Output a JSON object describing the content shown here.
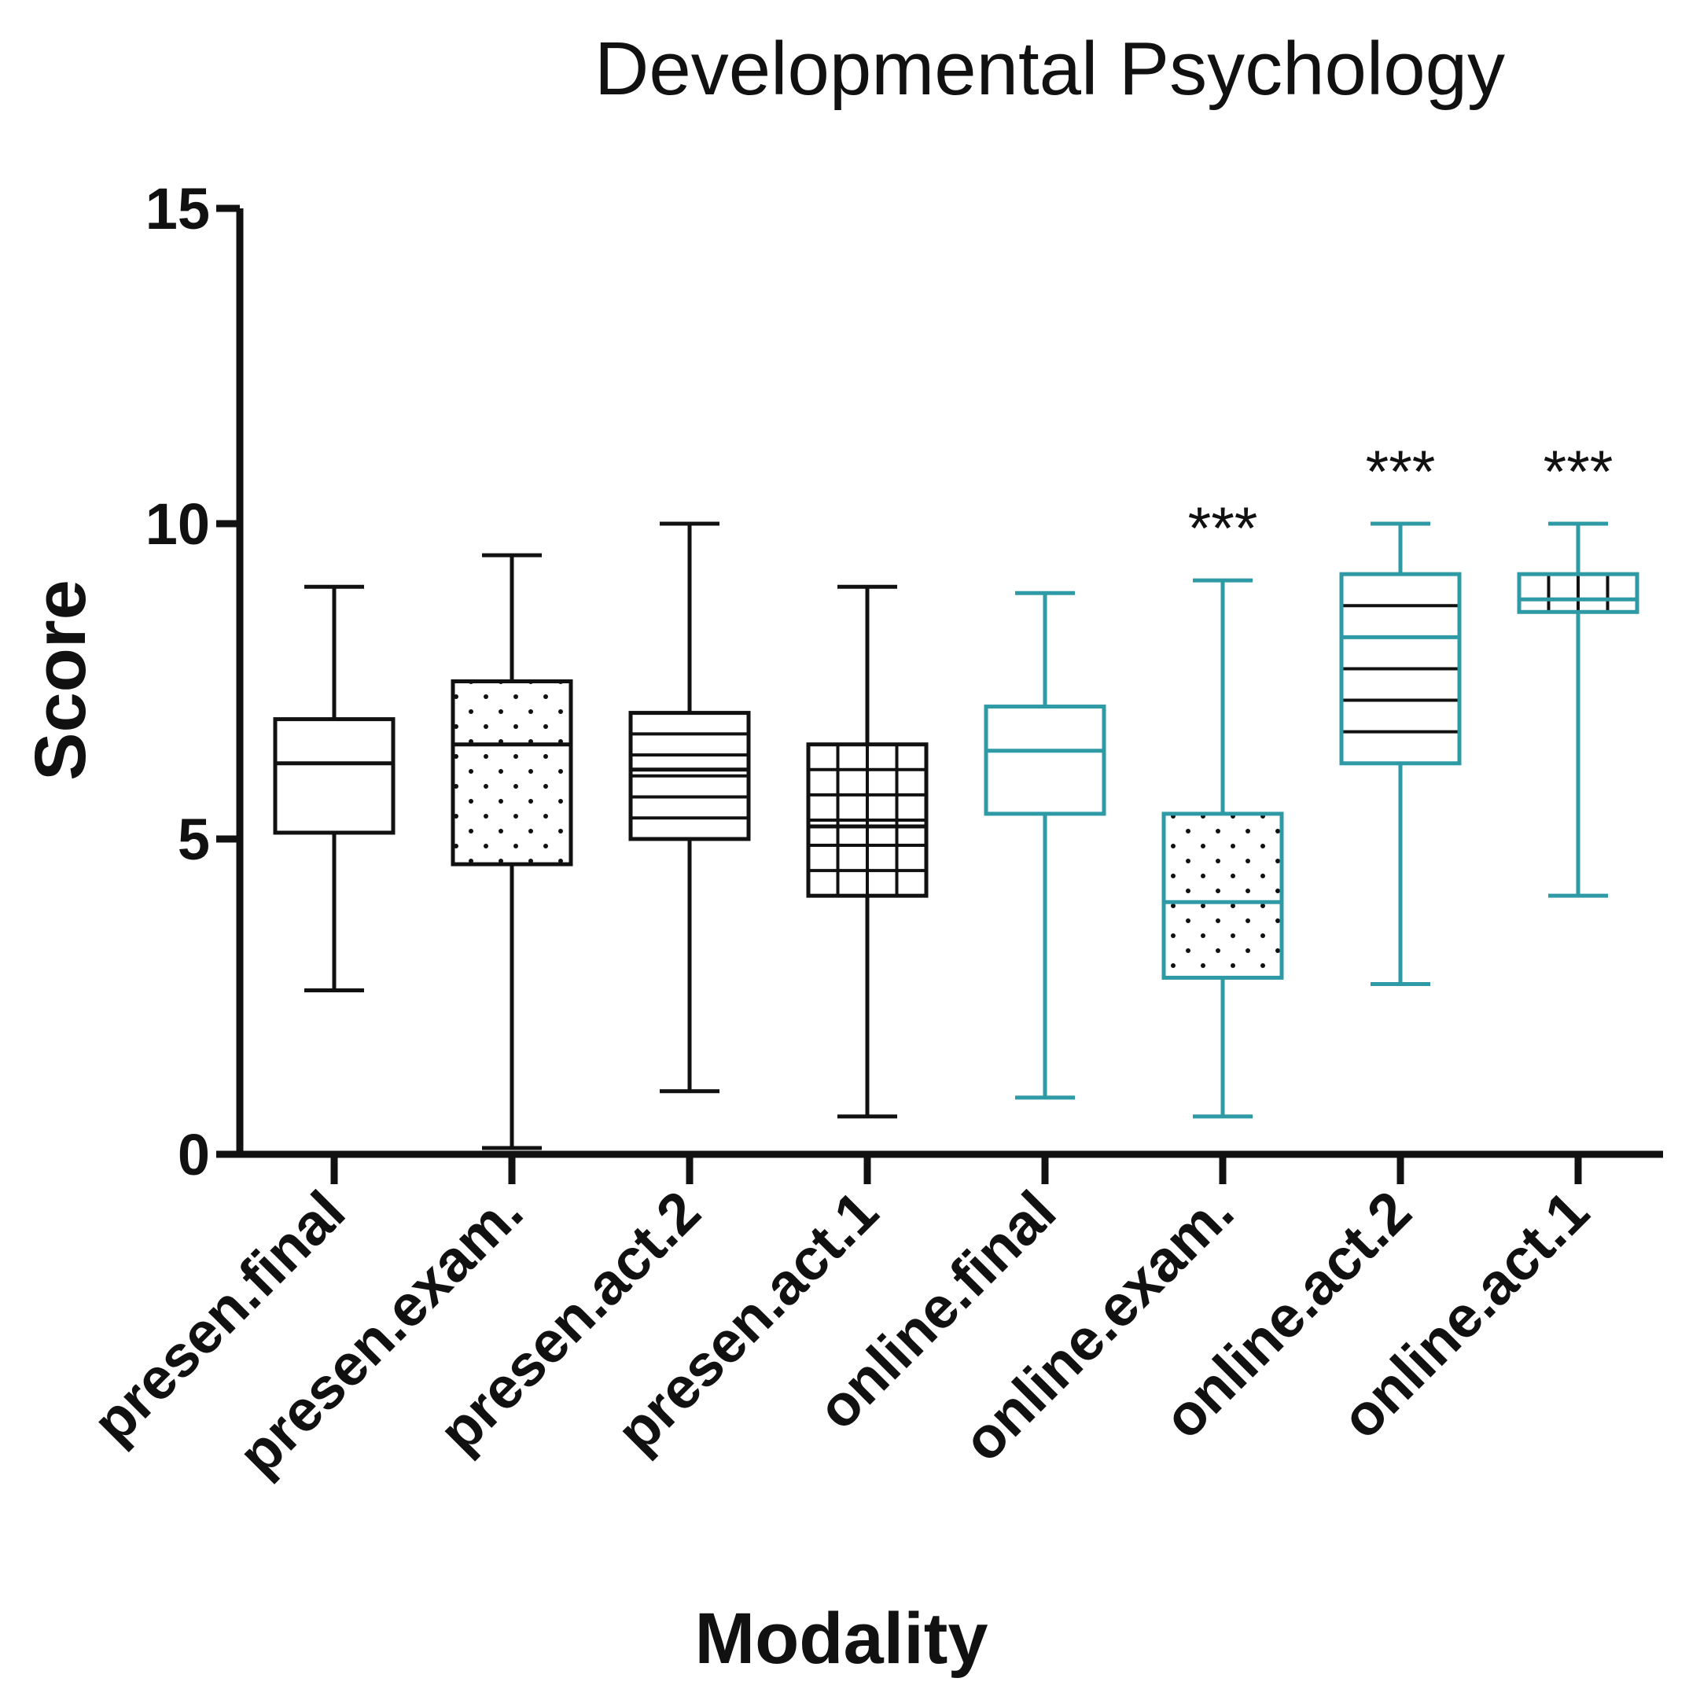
{
  "chart_data": {
    "type": "box",
    "title": "Developmental Psychology",
    "xlabel": "Modality",
    "ylabel": "Score",
    "ylim": [
      0,
      15
    ],
    "yticks": [
      0,
      5,
      10,
      15
    ],
    "grid": false,
    "legend": "none",
    "colors": {
      "presencial": "#111111",
      "online": "#2e9aa5"
    },
    "categories": [
      "presen.final",
      "presen.exam.",
      "presen.act.2",
      "presen.act.1",
      "online.final",
      "online.exam.",
      "online.act.2",
      "online.act.1"
    ],
    "boxes": [
      {
        "label": "presen.final",
        "min": 2.6,
        "q1": 5.1,
        "median": 6.2,
        "q3": 6.9,
        "max": 9.0,
        "pattern": "none",
        "group": "presencial",
        "significance": ""
      },
      {
        "label": "presen.exam.",
        "min": 0.1,
        "q1": 4.6,
        "median": 6.5,
        "q3": 7.5,
        "max": 9.5,
        "pattern": "dots",
        "group": "presencial",
        "significance": ""
      },
      {
        "label": "presen.act.2",
        "min": 1.0,
        "q1": 5.0,
        "median": 6.1,
        "q3": 7.0,
        "max": 10.0,
        "pattern": "hlines",
        "group": "presencial",
        "significance": ""
      },
      {
        "label": "presen.act.1",
        "min": 0.6,
        "q1": 4.1,
        "median": 5.2,
        "q3": 6.5,
        "max": 9.0,
        "pattern": "grid",
        "group": "presencial",
        "significance": ""
      },
      {
        "label": "online.final",
        "min": 0.9,
        "q1": 5.4,
        "median": 6.4,
        "q3": 7.1,
        "max": 8.9,
        "pattern": "none",
        "group": "online",
        "significance": ""
      },
      {
        "label": "online.exam.",
        "min": 0.6,
        "q1": 2.8,
        "median": 4.0,
        "q3": 5.4,
        "max": 9.1,
        "pattern": "dots",
        "group": "online",
        "significance": "***"
      },
      {
        "label": "online.act.2",
        "min": 2.7,
        "q1": 6.2,
        "median": 8.2,
        "q3": 9.2,
        "max": 10.0,
        "pattern": "hlines",
        "group": "online",
        "significance": "***"
      },
      {
        "label": "online.act.1",
        "min": 4.1,
        "q1": 8.6,
        "median": 8.8,
        "q3": 9.2,
        "max": 10.0,
        "pattern": "vlines",
        "group": "online",
        "significance": "***"
      }
    ]
  }
}
